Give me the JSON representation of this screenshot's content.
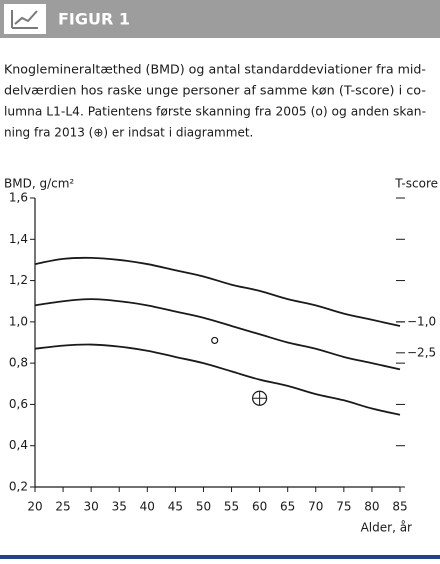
{
  "header": {
    "title": "FIGUR 1"
  },
  "caption": [
    "Knoglemineraltæthed (BMD) og antal standarddeviationer fra mid-",
    "delværdien hos raske unge personer af samme køn (T-score) i co-",
    "lumna L1-L4. Patientens første skanning fra 2005 (o) og anden skan-",
    "ning fra 2013 (⊕) er indsat i diagrammet."
  ],
  "chart_data": {
    "type": "line",
    "y_label": "BMD, g/cm²",
    "y2_label": "T-score",
    "x_label": "Alder, år",
    "x": [
      20,
      25,
      30,
      35,
      40,
      45,
      50,
      55,
      60,
      65,
      70,
      75,
      80,
      85
    ],
    "series": [
      {
        "color": "#1a1a1a",
        "values": [
          1.28,
          1.305,
          1.31,
          1.3,
          1.28,
          1.25,
          1.22,
          1.18,
          1.15,
          1.11,
          1.08,
          1.04,
          1.01,
          0.98
        ]
      },
      {
        "color": "#1a1a1a",
        "values": [
          1.08,
          1.1,
          1.11,
          1.1,
          1.08,
          1.05,
          1.02,
          0.98,
          0.94,
          0.9,
          0.87,
          0.83,
          0.8,
          0.77
        ]
      },
      {
        "color": "#1a1a1a",
        "values": [
          0.87,
          0.885,
          0.89,
          0.88,
          0.86,
          0.83,
          0.8,
          0.76,
          0.72,
          0.69,
          0.65,
          0.62,
          0.58,
          0.55
        ]
      }
    ],
    "markers": {
      "x": [
        52,
        60
      ],
      "y": [
        0.91,
        0.63
      ],
      "symbols": [
        "circle",
        "crossed-circle"
      ]
    },
    "xlim": [
      20,
      85
    ],
    "xticks": [
      20,
      25,
      30,
      35,
      40,
      45,
      50,
      55,
      60,
      65,
      70,
      75,
      80,
      85
    ],
    "ylim": [
      0.2,
      1.6
    ],
    "yticks": [
      {
        "value": 0.2,
        "label": "0,2"
      },
      {
        "value": 0.4,
        "label": "0,4"
      },
      {
        "value": 0.6,
        "label": "0,6"
      },
      {
        "value": 0.8,
        "label": "0,8"
      },
      {
        "value": 1.0,
        "label": "1,0"
      },
      {
        "value": 1.2,
        "label": "1,2"
      },
      {
        "value": 1.4,
        "label": "1,4"
      },
      {
        "value": 1.6,
        "label": "1,6"
      }
    ],
    "y2lim": [
      -9,
      5
    ],
    "y2ticks": [
      {
        "value": -1.0,
        "label": "−1,0"
      },
      {
        "value": -2.5,
        "label": "−2,5"
      }
    ]
  }
}
